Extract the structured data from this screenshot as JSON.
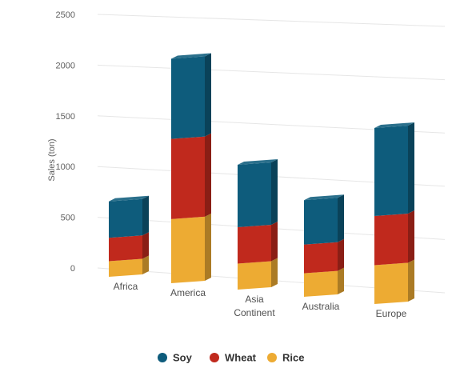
{
  "chart_data": {
    "type": "bar",
    "stacked": true,
    "three_d": true,
    "categories": [
      [
        "Africa"
      ],
      [
        "America"
      ],
      [
        "Asia",
        "Continent"
      ],
      [
        "Australia"
      ],
      [
        "Europe"
      ]
    ],
    "series": [
      {
        "name": "Rice",
        "values": [
          150,
          600,
          250,
          225,
          375
        ],
        "color": "#EDAB33"
      },
      {
        "name": "Wheat",
        "values": [
          225,
          750,
          350,
          275,
          475
        ],
        "color": "#C0291D"
      },
      {
        "name": "Soy",
        "values": [
          350,
          750,
          600,
          425,
          850
        ],
        "color": "#0E5C7C"
      }
    ],
    "legend_order": [
      "Soy",
      "Wheat",
      "Rice"
    ],
    "ylabel": "Sales (ton)",
    "yticks": [
      0,
      500,
      1000,
      1500,
      2000,
      2500
    ],
    "ylim": [
      0,
      2500
    ],
    "grid": true,
    "legend_position": "bottom"
  }
}
